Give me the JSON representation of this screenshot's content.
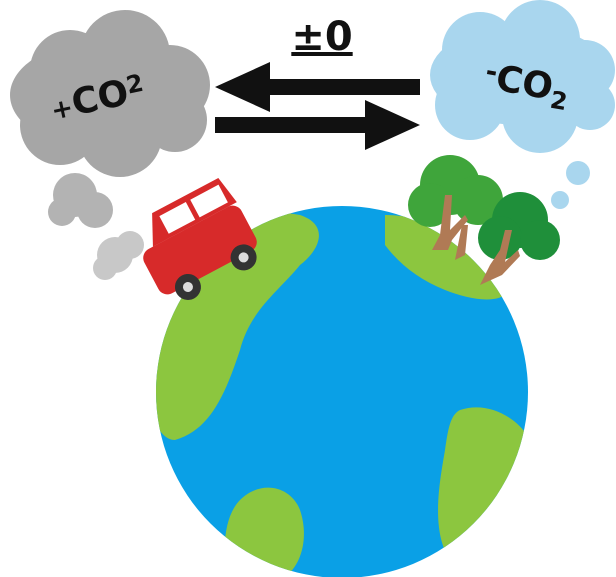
{
  "balance": "±0",
  "left_cloud": {
    "sign": "+",
    "base": "CO",
    "digit": "2"
  },
  "right_cloud": {
    "sign": "-",
    "base": "CO",
    "digit": "2"
  }
}
